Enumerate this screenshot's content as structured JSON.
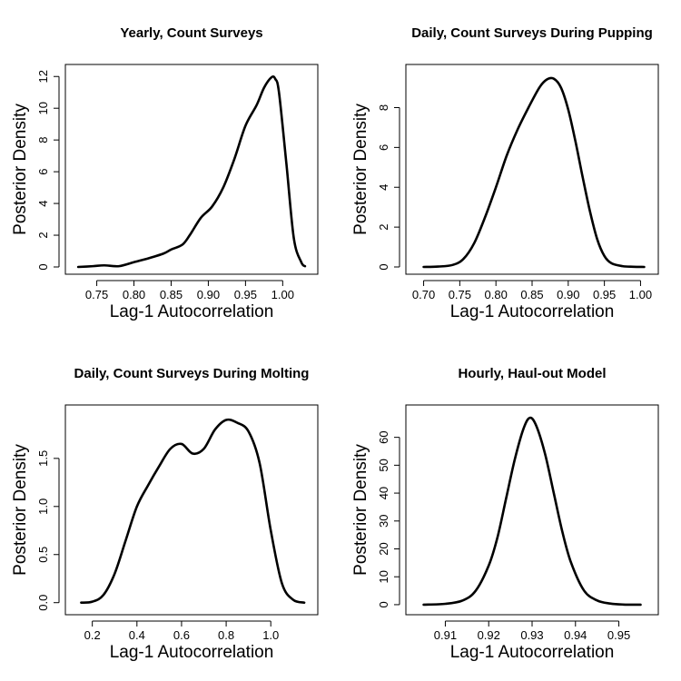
{
  "chart_data": [
    {
      "type": "line",
      "title": "Yearly, Count Surveys",
      "xlabel": "Lag-1 Autocorrelation",
      "ylabel": "Posterior Density",
      "xlim": [
        0.72,
        1.035
      ],
      "ylim": [
        0,
        12.3
      ],
      "xticks": [
        0.75,
        0.8,
        0.85,
        0.9,
        0.95,
        1.0
      ],
      "xtick_labels": [
        "0.75",
        "0.80",
        "0.85",
        "0.90",
        "0.95",
        "1.00"
      ],
      "yticks": [
        0,
        2,
        4,
        6,
        8,
        10,
        12
      ],
      "ytick_labels": [
        "0",
        "2",
        "4",
        "6",
        "8",
        "10",
        "12"
      ],
      "series": [
        {
          "x": [
            0.725,
            0.745,
            0.76,
            0.78,
            0.8,
            0.82,
            0.84,
            0.85,
            0.865,
            0.875,
            0.89,
            0.905,
            0.92,
            0.935,
            0.95,
            0.965,
            0.975,
            0.985,
            0.99,
            0.995,
            1.005,
            1.015,
            1.025,
            1.03
          ],
          "y": [
            0.0,
            0.05,
            0.1,
            0.05,
            0.3,
            0.55,
            0.85,
            1.1,
            1.4,
            2.0,
            3.1,
            3.8,
            5.0,
            6.8,
            8.9,
            10.2,
            11.3,
            11.95,
            11.85,
            11.0,
            6.5,
            1.8,
            0.3,
            0.05
          ]
        }
      ]
    },
    {
      "type": "line",
      "title": "Daily, Count Surveys During Pupping",
      "xlabel": "Lag-1 Autocorrelation",
      "ylabel": "Posterior Density",
      "xlim": [
        0.688,
        1.012
      ],
      "ylim": [
        0,
        9.8
      ],
      "xticks": [
        0.7,
        0.75,
        0.8,
        0.85,
        0.9,
        0.95,
        1.0
      ],
      "xtick_labels": [
        "0.70",
        "0.75",
        "0.80",
        "0.85",
        "0.90",
        "0.95",
        "1.00"
      ],
      "yticks": [
        0,
        2,
        4,
        6,
        8
      ],
      "ytick_labels": [
        "0",
        "2",
        "4",
        "6",
        "8"
      ],
      "series": [
        {
          "x": [
            0.7,
            0.72,
            0.74,
            0.755,
            0.77,
            0.785,
            0.8,
            0.815,
            0.83,
            0.845,
            0.86,
            0.87,
            0.88,
            0.89,
            0.9,
            0.91,
            0.92,
            0.93,
            0.94,
            0.95,
            0.96,
            0.975,
            0.99,
            1.005
          ],
          "y": [
            0.0,
            0.02,
            0.1,
            0.4,
            1.2,
            2.5,
            4.0,
            5.6,
            6.9,
            8.0,
            9.0,
            9.4,
            9.45,
            9.0,
            7.9,
            6.3,
            4.5,
            2.8,
            1.4,
            0.55,
            0.18,
            0.04,
            0.01,
            0.0
          ]
        }
      ]
    },
    {
      "type": "line",
      "title": "Daily, Count Surveys During Molting",
      "xlabel": "Lag-1 Autocorrelation",
      "ylabel": "Posterior Density",
      "xlim": [
        0.12,
        1.17
      ],
      "ylim": [
        -0.05,
        1.98
      ],
      "xticks": [
        0.2,
        0.4,
        0.6,
        0.8,
        1.0
      ],
      "xtick_labels": [
        "0.2",
        "0.4",
        "0.6",
        "0.8",
        "1.0"
      ],
      "yticks": [
        0.0,
        0.5,
        1.0,
        1.5
      ],
      "ytick_labels": [
        "0.0",
        "0.5",
        "1.0",
        "1.5"
      ],
      "series": [
        {
          "x": [
            0.15,
            0.2,
            0.25,
            0.3,
            0.35,
            0.4,
            0.45,
            0.5,
            0.55,
            0.6,
            0.65,
            0.7,
            0.75,
            0.8,
            0.85,
            0.9,
            0.95,
            1.0,
            1.05,
            1.1,
            1.15
          ],
          "y": [
            0.0,
            0.01,
            0.08,
            0.3,
            0.65,
            1.0,
            1.22,
            1.42,
            1.6,
            1.65,
            1.55,
            1.6,
            1.8,
            1.9,
            1.87,
            1.78,
            1.45,
            0.75,
            0.2,
            0.03,
            0.0
          ]
        }
      ]
    },
    {
      "type": "line",
      "title": "Hourly, Haul-out Model",
      "xlabel": "Lag-1 Autocorrelation",
      "ylabel": "Posterior Density",
      "xlim": [
        0.903,
        0.957
      ],
      "ylim": [
        -1,
        69
      ],
      "xticks": [
        0.91,
        0.92,
        0.93,
        0.94,
        0.95
      ],
      "xtick_labels": [
        "0.91",
        "0.92",
        "0.93",
        "0.94",
        "0.95"
      ],
      "yticks": [
        0,
        10,
        20,
        30,
        40,
        50,
        60
      ],
      "ytick_labels": [
        "0",
        "10",
        "20",
        "30",
        "40",
        "50",
        "60"
      ],
      "series": [
        {
          "x": [
            0.905,
            0.91,
            0.914,
            0.917,
            0.92,
            0.922,
            0.924,
            0.926,
            0.928,
            0.9295,
            0.931,
            0.933,
            0.935,
            0.937,
            0.939,
            0.942,
            0.945,
            0.948,
            0.951,
            0.955
          ],
          "y": [
            0.0,
            0.3,
            1.5,
            5.0,
            14.0,
            24.0,
            38.0,
            52.0,
            63.0,
            67.0,
            64.0,
            54.0,
            40.0,
            26.0,
            15.0,
            5.0,
            1.5,
            0.4,
            0.05,
            0.0
          ]
        }
      ]
    }
  ]
}
